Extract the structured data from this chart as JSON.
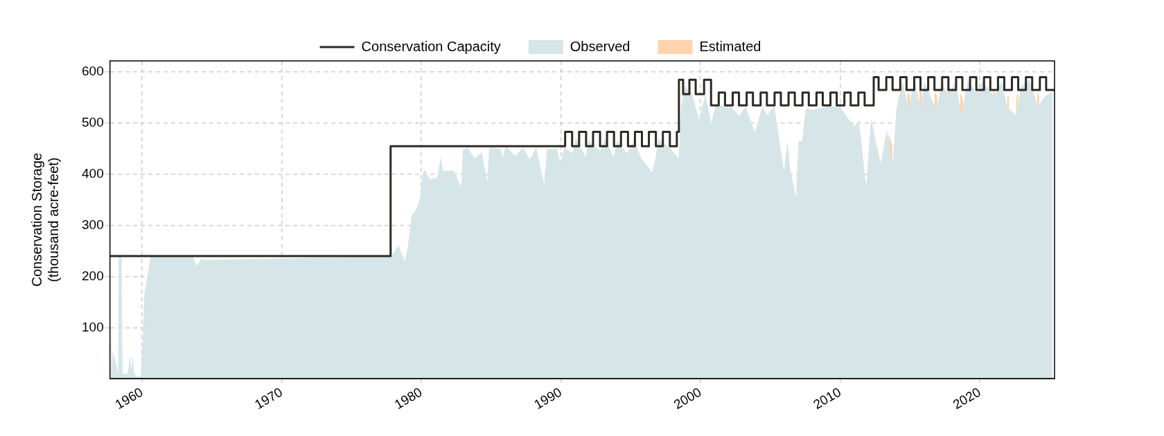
{
  "chart_data": {
    "type": "area",
    "ylabel": "Conservation Storage\n(thousand acre-feet)",
    "xlim": [
      1957.7,
      2025.35
    ],
    "xticks": [
      1960,
      1970,
      1980,
      1990,
      2000,
      2010,
      2020
    ],
    "ylim": [
      0,
      622
    ],
    "yticks": [
      100,
      200,
      300,
      400,
      500,
      600
    ],
    "grid": true,
    "legend": "top",
    "series": [
      {
        "name": "Observed",
        "type": "area",
        "color": "#d6e5e7",
        "x": [
          1957.75,
          1957.8,
          1957.85,
          1957.9,
          1958.05,
          1958.3,
          1958.32,
          1958.53,
          1958.6,
          1958.87,
          1959.0,
          1959.13,
          1959.2,
          1959.31,
          1959.45,
          1959.57,
          1959.91,
          1960.05,
          1960.17,
          1960.43,
          1960.6,
          1963.64,
          1963.9,
          1964.24,
          1964.58,
          1977.8,
          1977.92,
          1978.35,
          1978.82,
          1979.05,
          1979.31,
          1979.65,
          1979.91,
          1980.09,
          1980.26,
          1980.61,
          1981.13,
          1981.39,
          1981.56,
          1982.34,
          1982.86,
          1982.98,
          1983.29,
          1983.81,
          1984.33,
          1984.73,
          1984.85,
          1985.71,
          1985.8,
          1986.06,
          1986.75,
          1987.27,
          1987.79,
          1988.22,
          1988.8,
          1989.0,
          1989.7,
          1989.96,
          1990.25,
          1990.82,
          1991.08,
          1991.78,
          1991.95,
          1992.81,
          1993.16,
          1993.77,
          1994.03,
          1994.72,
          1995.24,
          1995.76,
          1996.54,
          1996.8,
          1996.97,
          1997.84,
          1998.44,
          1998.61,
          1998.87,
          1999.39,
          1999.91,
          2000.34,
          2000.78,
          2001.04,
          2001.3,
          2002.17,
          2002.77,
          2003.21,
          2003.9,
          2004.42,
          2004.76,
          2005.28,
          2005.97,
          2006.23,
          2006.41,
          2006.84,
          2007.01,
          2007.27,
          2007.53,
          2008.05,
          2009.09,
          2009.96,
          2010.65,
          2011.0,
          2011.34,
          2011.86,
          2012.21,
          2012.47,
          2012.9,
          2013.34,
          2013.77,
          2014.03,
          2014.46,
          2014.9,
          2015.32,
          2015.76,
          2016.02,
          2016.88,
          2017.23,
          2017.75,
          2018.27,
          2018.7,
          2019.13,
          2019.83,
          2020.17,
          2021.04,
          2021.56,
          2021.99,
          2022.6,
          2022.94,
          2023.55,
          2024.16,
          2024.68,
          2025.2
        ],
        "values": [
          4,
          116,
          14,
          55,
          40,
          10,
          240,
          240,
          10,
          8,
          15,
          49,
          15,
          45,
          10,
          5,
          4,
          77,
          169,
          208,
          240,
          240,
          220,
          235,
          232,
          240,
          242,
          261,
          230,
          261,
          320,
          331,
          354,
          402,
          409,
          390,
          393,
          434,
          407,
          407,
          375,
          448,
          453,
          431,
          443,
          385,
          453,
          450,
          431,
          455,
          436,
          453,
          429,
          453,
          380,
          450,
          450,
          422,
          453,
          441,
          470,
          434,
          466,
          446,
          470,
          434,
          466,
          441,
          466,
          431,
          404,
          436,
          470,
          450,
          431,
          533,
          572,
          557,
          506,
          557,
          499,
          533,
          535,
          533,
          514,
          533,
          482,
          533,
          516,
          533,
          407,
          465,
          411,
          354,
          465,
          465,
          529,
          526,
          533,
          533,
          506,
          494,
          506,
          375,
          509,
          475,
          422,
          487,
          422,
          530,
          582,
          530,
          585,
          526,
          582,
          526,
          577,
          557,
          582,
          514,
          584,
          557,
          582,
          553,
          582,
          530,
          516,
          572,
          585,
          533,
          553,
          562
        ]
      },
      {
        "name": "Estimated",
        "type": "area",
        "color": "#ffd3ad",
        "x": [
          2013.45,
          2013.75,
          2014.4,
          2014.8,
          2015.0,
          2015.4,
          2015.65,
          2015.85,
          2016.3,
          2016.75,
          2016.95,
          2017.4,
          2017.65,
          2017.85,
          2018.3,
          2018.6,
          2018.8,
          2019.3,
          2019.75,
          2019.9,
          2020.5,
          2020.95,
          2021.1,
          2021.5,
          2021.95,
          2022.1,
          2022.3,
          2022.6,
          2022.75,
          2023.5,
          2024.1,
          2024.25
        ],
        "values": [
          480,
          455,
          null,
          560,
          555,
          null,
          565,
          560,
          null,
          560,
          555,
          null,
          570,
          565,
          null,
          560,
          545,
          null,
          565,
          560,
          null,
          565,
          560,
          null,
          555,
          550,
          null,
          550,
          565,
          null,
          560,
          555
        ]
      },
      {
        "name": "Conservation Capacity",
        "type": "step",
        "color": "#2b2a24",
        "x": [
          1957.7,
          1977.8,
          1990.3,
          1990.8,
          1991.3,
          1991.8,
          1992.3,
          1992.8,
          1993.3,
          1993.8,
          1994.3,
          1994.8,
          1995.3,
          1995.8,
          1996.3,
          1996.8,
          1997.3,
          1997.8,
          1998.3,
          1998.45,
          1998.75,
          1999.2,
          1999.65,
          2000.25,
          2000.75,
          2001.3,
          2001.75,
          2002.3,
          2002.75,
          2003.3,
          2003.75,
          2004.3,
          2004.75,
          2005.3,
          2005.75,
          2006.3,
          2006.75,
          2007.3,
          2007.75,
          2008.3,
          2008.75,
          2009.3,
          2009.75,
          2010.3,
          2010.75,
          2011.3,
          2011.75,
          2012.4,
          2012.75,
          2013.3,
          2013.75,
          2014.3,
          2014.75,
          2015.3,
          2015.75,
          2016.3,
          2016.75,
          2017.3,
          2017.75,
          2018.3,
          2018.75,
          2019.3,
          2019.75,
          2020.3,
          2020.75,
          2021.3,
          2021.75,
          2022.3,
          2022.75,
          2023.3,
          2023.75,
          2024.3,
          2024.75,
          2025.35
        ],
        "values": [
          240,
          455,
          483,
          455,
          483,
          455,
          483,
          455,
          483,
          455,
          483,
          455,
          483,
          455,
          483,
          455,
          483,
          455,
          483,
          585,
          557,
          585,
          557,
          585,
          535,
          560,
          535,
          560,
          535,
          560,
          535,
          560,
          535,
          560,
          535,
          560,
          535,
          560,
          535,
          560,
          535,
          560,
          535,
          560,
          535,
          560,
          535,
          590,
          565,
          590,
          565,
          590,
          565,
          590,
          565,
          590,
          565,
          590,
          565,
          590,
          565,
          590,
          565,
          590,
          565,
          590,
          565,
          590,
          565,
          590,
          565,
          590,
          565,
          565
        ]
      }
    ]
  }
}
